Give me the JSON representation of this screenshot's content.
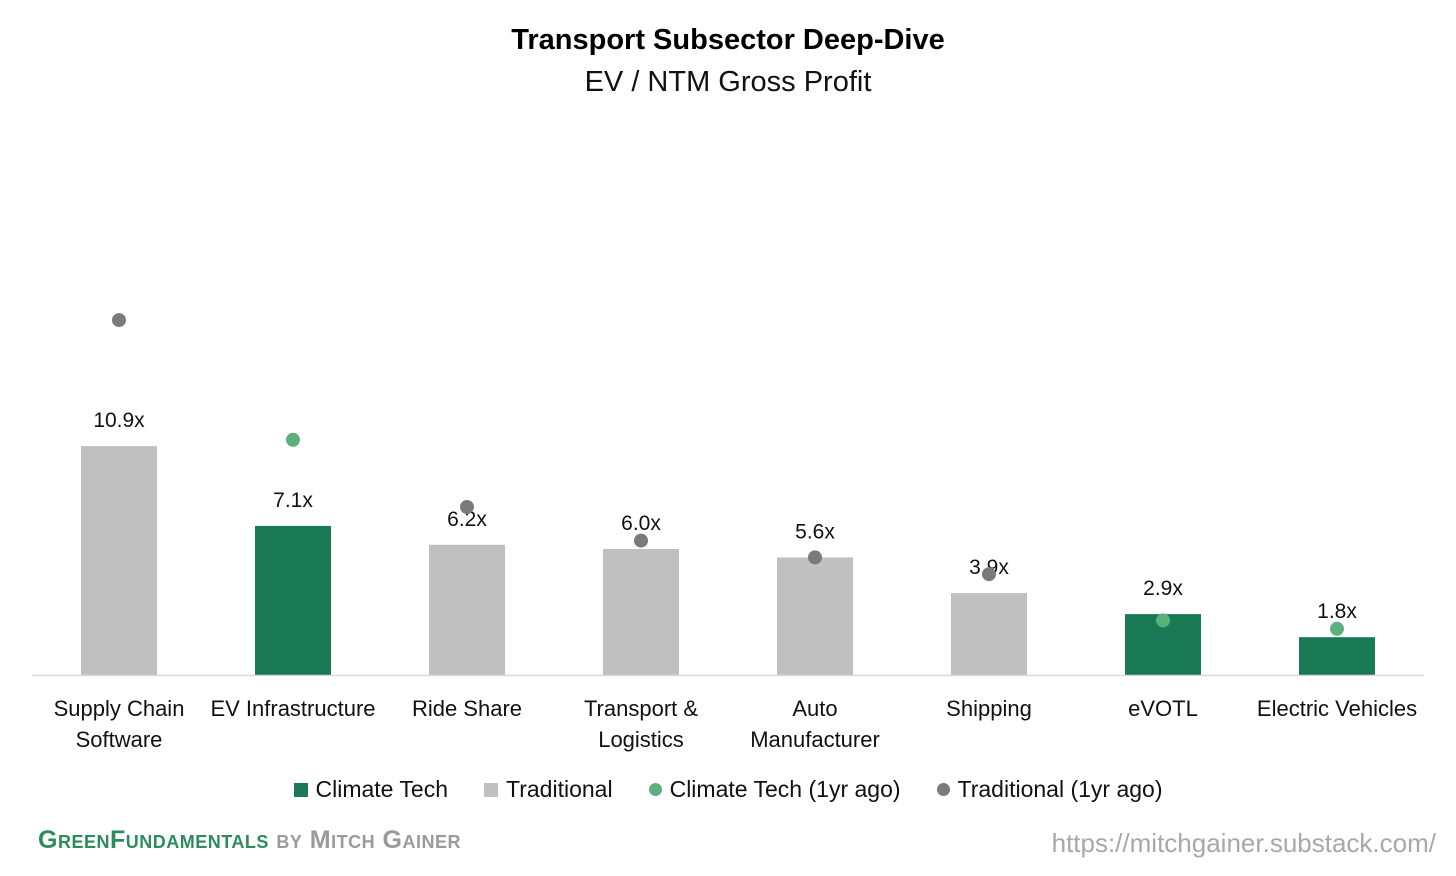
{
  "colors": {
    "climate": "#1a7a56",
    "traditional": "#c0c0c0",
    "climate_prior": "#5bb07e",
    "traditional_prior": "#7a7a7a",
    "axis": "#d9d9d9"
  },
  "chart_data": {
    "type": "bar",
    "title": "Transport Subsector Deep-Dive",
    "subtitle": "EV / NTM Gross Profit",
    "categories": [
      [
        "Supply Chain",
        "Software"
      ],
      [
        "EV Infrastructure"
      ],
      [
        "Ride Share"
      ],
      [
        "Transport &",
        "Logistics"
      ],
      [
        "Auto",
        "Manufacturer"
      ],
      [
        "Shipping"
      ],
      [
        "eVOTL"
      ],
      [
        "Electric Vehicles"
      ]
    ],
    "values": [
      10.9,
      7.1,
      6.2,
      6.0,
      5.6,
      3.9,
      2.9,
      1.8
    ],
    "value_labels": [
      "10.9x",
      "7.1x",
      "6.2x",
      "6.0x",
      "5.6x",
      "3.9x",
      "2.9x",
      "1.8x"
    ],
    "group": [
      "Traditional",
      "Climate Tech",
      "Traditional",
      "Traditional",
      "Traditional",
      "Traditional",
      "Climate Tech",
      "Climate Tech"
    ],
    "prior_year": [
      16.9,
      11.2,
      8.0,
      6.4,
      5.6,
      4.8,
      2.6,
      2.2
    ],
    "ylim": [
      0,
      20
    ],
    "legend": [
      "Climate Tech",
      "Traditional",
      "Climate Tech (1yr ago)",
      "Traditional (1yr ago)"
    ]
  },
  "footer": {
    "brand_part1": "GreenFundamentals",
    "brand_part2": "by Mitch Gainer",
    "url": "https://mitchgainer.substack.com/"
  }
}
